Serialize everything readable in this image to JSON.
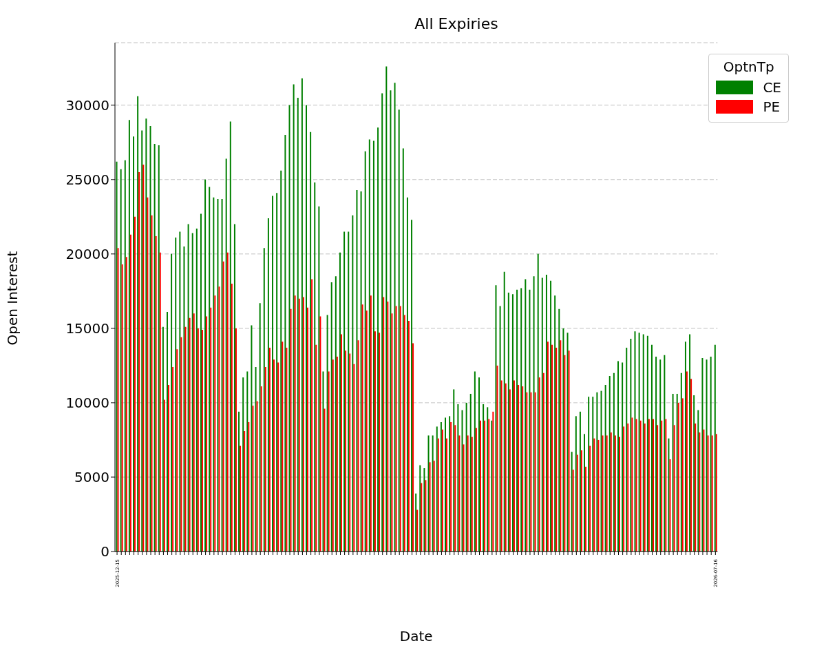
{
  "chart_data": {
    "type": "bar",
    "title": "All Expiries",
    "xlabel": "Date",
    "ylabel": "Open Interest",
    "legend_title": "OptnTp",
    "legend": "top right",
    "grid": "y",
    "categories": [
      "2025-12-15",
      null,
      null,
      null,
      null,
      null,
      null,
      null,
      null,
      null,
      null,
      null,
      null,
      null,
      null,
      null,
      null,
      null,
      null,
      null,
      null,
      null,
      null,
      null,
      null,
      null,
      null,
      null,
      null,
      null,
      null,
      null,
      null,
      null,
      null,
      null,
      null,
      null,
      null,
      null,
      null,
      null,
      null,
      null,
      null,
      null,
      null,
      null,
      null,
      null,
      null,
      null,
      null,
      null,
      null,
      null,
      null,
      null,
      null,
      null,
      null,
      null,
      null,
      null,
      null,
      null,
      null,
      null,
      null,
      null,
      null,
      null,
      null,
      null,
      null,
      null,
      null,
      null,
      null,
      null,
      null,
      null,
      null,
      null,
      null,
      null,
      null,
      null,
      null,
      null,
      null,
      null,
      null,
      null,
      null,
      null,
      null,
      null,
      null,
      null,
      null,
      null,
      null,
      null,
      null,
      null,
      null,
      null,
      null,
      null,
      null,
      null,
      null,
      null,
      null,
      null,
      null,
      null,
      null,
      null,
      null,
      null,
      null,
      null,
      null,
      null,
      null,
      null,
      null,
      null,
      null,
      null,
      null,
      null,
      null,
      null,
      null,
      null,
      null,
      null,
      null,
      null,
      "2026-07-16"
    ],
    "ylim": [
      0,
      34200
    ],
    "yticks": [
      0,
      5000,
      10000,
      15000,
      20000,
      25000,
      30000
    ],
    "series": [
      {
        "name": "CE",
        "color": "#008000",
        "values": [
          26200,
          25700,
          26300,
          29000,
          27900,
          30600,
          28300,
          29100,
          28600,
          27400,
          27300,
          15100,
          16100,
          20000,
          21100,
          21500,
          20500,
          22000,
          21400,
          21700,
          22700,
          25000,
          24500,
          23800,
          23700,
          23700,
          26400,
          28900,
          22000,
          9400,
          11700,
          12100,
          15200,
          12400,
          16700,
          20400,
          22400,
          23900,
          24100,
          25600,
          28000,
          30000,
          31400,
          30500,
          31800,
          30000,
          28200,
          24800,
          23200,
          12100,
          15900,
          18100,
          18500,
          20100,
          21500,
          21500,
          22600,
          24300,
          24200,
          26900,
          27700,
          27600,
          28500,
          30800,
          32600,
          31000,
          31500,
          29700,
          27100,
          23800,
          22300,
          3900,
          5800,
          5600,
          7800,
          7800,
          8400,
          8700,
          9000,
          9100,
          10900,
          9900,
          9500,
          10000,
          10600,
          12100,
          11700,
          9900,
          9700,
          8800,
          17900,
          16500,
          18800,
          17400,
          17300,
          17600,
          17700,
          18300,
          17600,
          18500,
          20000,
          18400,
          18600,
          18200,
          17200,
          16300,
          15000,
          14700,
          6700,
          9100,
          9400,
          7900,
          10400,
          10400,
          10700,
          10800,
          11200,
          11800,
          12000,
          12800,
          12700,
          13700,
          14300,
          14800,
          14700,
          14600,
          14500,
          13900,
          13100,
          12900,
          13200,
          7600,
          10600,
          10600,
          12000,
          14100,
          14600,
          10500,
          9500,
          13000,
          12900,
          13100,
          13900
        ]
      },
      {
        "name": "PE",
        "color": "#ff0000",
        "values": [
          20400,
          19300,
          19800,
          21300,
          22500,
          25500,
          26000,
          23800,
          22600,
          21200,
          20100,
          10200,
          11200,
          12400,
          13600,
          14400,
          15100,
          15700,
          16000,
          15000,
          14900,
          15800,
          16400,
          17200,
          17800,
          19500,
          20100,
          18000,
          15000,
          7100,
          8100,
          8700,
          9800,
          10100,
          11100,
          12400,
          13700,
          12900,
          12700,
          14100,
          13700,
          16300,
          17200,
          17000,
          17100,
          16400,
          18300,
          13900,
          15800,
          9600,
          12100,
          12900,
          13100,
          14600,
          13500,
          13300,
          12600,
          14200,
          16600,
          16200,
          17200,
          14800,
          14700,
          17100,
          16800,
          16000,
          16500,
          16500,
          15900,
          15500,
          14000,
          2800,
          4600,
          4800,
          6000,
          6100,
          7600,
          8200,
          7600,
          8700,
          8500,
          7800,
          7200,
          7800,
          7700,
          8300,
          8800,
          8800,
          8900,
          9400,
          12500,
          11500,
          11300,
          10900,
          11500,
          11200,
          11100,
          10700,
          10700,
          10700,
          11700,
          12000,
          14100,
          13900,
          13700,
          14200,
          13200,
          13500,
          5500,
          6500,
          6800,
          5700,
          7100,
          7600,
          7500,
          7800,
          7800,
          8000,
          7800,
          7700,
          8400,
          8600,
          9000,
          8900,
          8800,
          8600,
          8900,
          8900,
          8500,
          8800,
          8900,
          6200,
          8500,
          10000,
          10300,
          12100,
          11600,
          8600,
          8000,
          8200,
          7800,
          7800,
          7900
        ]
      }
    ]
  }
}
